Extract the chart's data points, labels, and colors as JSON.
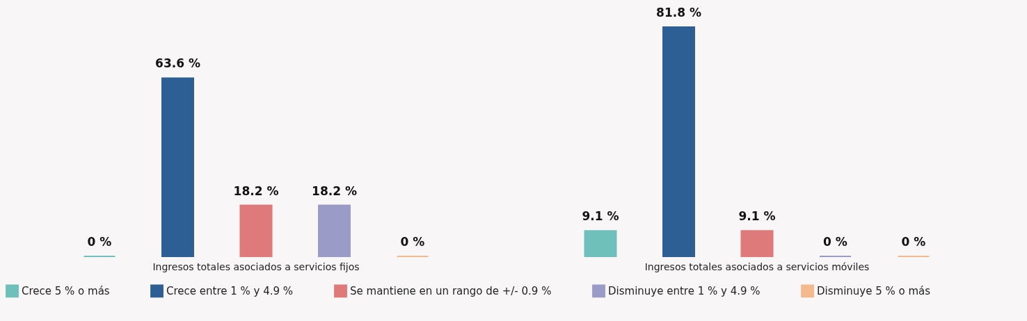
{
  "chart_data": {
    "type": "bar",
    "categories": [
      "Ingresos totales asociados a servicios fijos",
      "Ingresos totales asociados a servicios móviles"
    ],
    "series": [
      {
        "name": "Crece 5 % o más",
        "color": "#6fbfba",
        "values": [
          0,
          9.1
        ],
        "value_labels": [
          "0 %",
          "9.1 %"
        ]
      },
      {
        "name": "Crece entre 1 % y 4.9 %",
        "color": "#2e5f94",
        "values": [
          63.6,
          81.8
        ],
        "value_labels": [
          "63.6 %",
          "81.8 %"
        ]
      },
      {
        "name": "Se mantiene en un rango de +/- 0.9 %",
        "color": "#de7a7a",
        "values": [
          18.2,
          9.1
        ],
        "value_labels": [
          "18.2 %",
          "9.1 %"
        ]
      },
      {
        "name": "Disminuye entre 1 % y 4.9 %",
        "color": "#9b9bc8",
        "values": [
          18.2,
          0
        ],
        "value_labels": [
          "18.2 %",
          "0 %"
        ]
      },
      {
        "name": "Disminuye 5 % o más",
        "color": "#f5b98e",
        "values": [
          0,
          0
        ],
        "value_labels": [
          "0 %",
          "0 %"
        ]
      }
    ],
    "legend": "bottom"
  }
}
